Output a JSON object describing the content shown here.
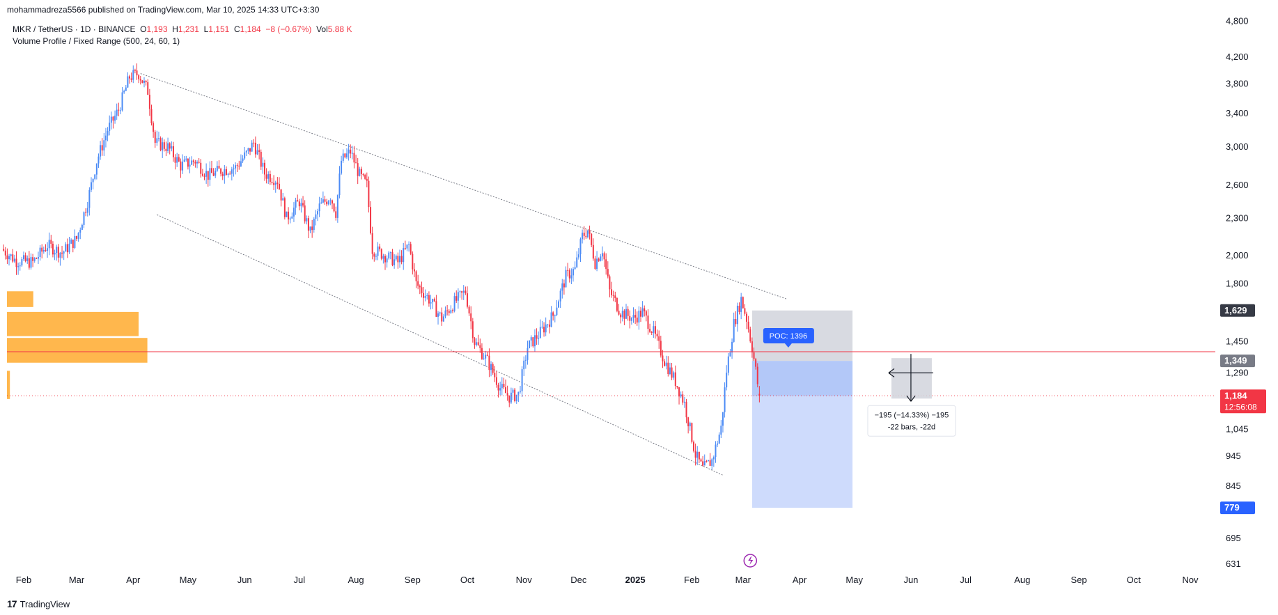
{
  "publisher": "mohammadreza5566 published on TradingView.com, Mar 10, 2025 14:33 UTC+3:30",
  "symbol": {
    "name": "MKR / TetherUS · 1D · BINANCE",
    "open_label": "O",
    "open": "1,193",
    "high_label": "H",
    "high": "1,231",
    "low_label": "L",
    "low": "1,151",
    "close_label": "C",
    "close": "1,184",
    "change": "−8 (−0.67%)",
    "vol_label": "Vol",
    "vol": "5.88 K"
  },
  "indicator": "Volume Profile / Fixed Range (500, 24, 60, 1)",
  "footer": {
    "logo": "17",
    "brand": "TradingView"
  },
  "colors": {
    "up": "#4c8bf5",
    "down": "#f23645",
    "volume_profile": "#ffb74d",
    "poc_line": "#f23645",
    "price_tag": "#f23645",
    "range_box": "#d1d4dc",
    "projection": "#c6d5fb",
    "poc_label": "#2962ff"
  },
  "chart_data": {
    "type": "candlestick",
    "y_scale": "log",
    "ylim": [
      600,
      4800
    ],
    "y_ticks": [
      "4,800",
      "4,200",
      "3,800",
      "3,400",
      "3,000",
      "2,600",
      "2,300",
      "2,000",
      "1,800",
      "1,450",
      "1,290",
      "1,045",
      "945",
      "845",
      "695",
      "631"
    ],
    "y_tick_values": [
      4800,
      4200,
      3800,
      3400,
      3000,
      2600,
      2300,
      2000,
      1800,
      1450,
      1290,
      1045,
      945,
      845,
      695,
      631
    ],
    "x_ticks": [
      "Feb",
      "Mar",
      "Apr",
      "May",
      "Jun",
      "Jul",
      "Aug",
      "Sep",
      "Oct",
      "Nov",
      "Dec",
      "2025",
      "Feb",
      "Mar",
      "Apr",
      "May",
      "Jun",
      "Jul",
      "Aug",
      "Sep",
      "Oct",
      "Nov"
    ],
    "x_tick_dates": [
      "2024-02-01",
      "2024-03-01",
      "2024-04-01",
      "2024-05-01",
      "2024-06-01",
      "2024-07-01",
      "2024-08-01",
      "2024-09-01",
      "2024-10-01",
      "2024-11-01",
      "2024-12-01",
      "2025-01-01",
      "2025-02-01",
      "2025-03-01",
      "2025-04-01",
      "2025-05-01",
      "2025-06-01",
      "2025-07-01",
      "2025-08-01",
      "2025-09-01",
      "2025-10-01",
      "2025-11-01"
    ],
    "price_path": [
      [
        "2024-01-20",
        2050
      ],
      [
        "2024-01-28",
        1960
      ],
      [
        "2024-02-06",
        1950
      ],
      [
        "2024-02-14",
        2080
      ],
      [
        "2024-02-22",
        2020
      ],
      [
        "2024-03-01",
        2130
      ],
      [
        "2024-03-07",
        2450
      ],
      [
        "2024-03-12",
        2850
      ],
      [
        "2024-03-18",
        3200
      ],
      [
        "2024-03-24",
        3450
      ],
      [
        "2024-03-30",
        3900
      ],
      [
        "2024-04-04",
        3950
      ],
      [
        "2024-04-09",
        3700
      ],
      [
        "2024-04-13",
        3050
      ],
      [
        "2024-04-20",
        3000
      ],
      [
        "2024-04-27",
        2800
      ],
      [
        "2024-05-05",
        2850
      ],
      [
        "2024-05-12",
        2700
      ],
      [
        "2024-05-19",
        2750
      ],
      [
        "2024-05-27",
        2780
      ],
      [
        "2024-06-03",
        2950
      ],
      [
        "2024-06-06",
        3050
      ],
      [
        "2024-06-12",
        2720
      ],
      [
        "2024-06-19",
        2650
      ],
      [
        "2024-06-24",
        2300
      ],
      [
        "2024-07-01",
        2450
      ],
      [
        "2024-07-07",
        2180
      ],
      [
        "2024-07-12",
        2400
      ],
      [
        "2024-07-18",
        2500
      ],
      [
        "2024-07-21",
        2350
      ],
      [
        "2024-07-24",
        2850
      ],
      [
        "2024-07-29",
        2950
      ],
      [
        "2024-08-03",
        2700
      ],
      [
        "2024-08-07",
        2600
      ],
      [
        "2024-08-10",
        2050
      ],
      [
        "2024-08-17",
        2000
      ],
      [
        "2024-08-24",
        1950
      ],
      [
        "2024-08-30",
        2080
      ],
      [
        "2024-09-03",
        1800
      ],
      [
        "2024-09-10",
        1700
      ],
      [
        "2024-09-17",
        1580
      ],
      [
        "2024-09-24",
        1680
      ],
      [
        "2024-09-30",
        1750
      ],
      [
        "2024-10-05",
        1450
      ],
      [
        "2024-10-12",
        1350
      ],
      [
        "2024-10-19",
        1220
      ],
      [
        "2024-10-24",
        1180
      ],
      [
        "2024-10-29",
        1190
      ],
      [
        "2024-11-03",
        1420
      ],
      [
        "2024-11-10",
        1500
      ],
      [
        "2024-11-17",
        1600
      ],
      [
        "2024-11-24",
        1850
      ],
      [
        "2024-11-29",
        1900
      ],
      [
        "2024-12-03",
        2150
      ],
      [
        "2024-12-06",
        2200
      ],
      [
        "2024-12-10",
        1950
      ],
      [
        "2024-12-14",
        2050
      ],
      [
        "2024-12-18",
        1750
      ],
      [
        "2024-12-24",
        1620
      ],
      [
        "2024-12-31",
        1580
      ],
      [
        "2025-01-05",
        1620
      ],
      [
        "2025-01-11",
        1500
      ],
      [
        "2025-01-17",
        1350
      ],
      [
        "2025-01-23",
        1250
      ],
      [
        "2025-01-28",
        1150
      ],
      [
        "2025-02-03",
        950
      ],
      [
        "2025-02-07",
        900
      ],
      [
        "2025-02-12",
        930
      ],
      [
        "2025-02-17",
        1050
      ],
      [
        "2025-02-20",
        1300
      ],
      [
        "2025-02-24",
        1550
      ],
      [
        "2025-02-28",
        1700
      ],
      [
        "2025-03-03",
        1580
      ],
      [
        "2025-03-06",
        1420
      ],
      [
        "2025-03-08",
        1300
      ],
      [
        "2025-03-10",
        1184
      ]
    ],
    "last_candle": {
      "open": 1193,
      "high": 1231,
      "low": 1151,
      "close": 1184
    },
    "volume_profile_rows": [
      {
        "price_from": 1750,
        "price_to": 1650,
        "volume_rel": 0.18
      },
      {
        "price_from": 1620,
        "price_to": 1480,
        "volume_rel": 0.9
      },
      {
        "price_from": 1470,
        "price_to": 1340,
        "volume_rel": 0.96
      },
      {
        "price_from": 1300,
        "price_to": 1170,
        "volume_rel": 0.02
      }
    ],
    "poc_price": 1396,
    "poc_label": "POC: 1396",
    "trendlines": [
      {
        "from": [
          "2024-04-05",
          3950
        ],
        "to": [
          "2025-03-25",
          1700
        ]
      },
      {
        "from": [
          "2024-04-14",
          2330
        ],
        "to": [
          "2025-02-18",
          880
        ]
      }
    ],
    "range_box": {
      "from_date": "2025-03-06",
      "to_date": "2025-04-30",
      "top_price": 1629,
      "bottom_price": 1349
    },
    "projection_box": {
      "from_date": "2025-03-06",
      "to_date": "2025-04-30",
      "top_price": 1349,
      "bottom_price": 779
    },
    "measure": {
      "line1": "−195 (−14.33%) −195",
      "line2": "-22 bars, -22d"
    },
    "price_tags": [
      {
        "label": "1,629",
        "value": 1629,
        "style": "dark"
      },
      {
        "label": "1,349",
        "value": 1349,
        "style": "grey"
      },
      {
        "label": "1,184",
        "value": 1184,
        "style": "red",
        "sub": "12:56:08"
      },
      {
        "label": "779",
        "value": 779,
        "style": "blue"
      }
    ]
  }
}
